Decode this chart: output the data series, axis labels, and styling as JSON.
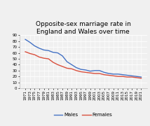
{
  "title": "Opposite-sex marriage rate in\nEngland and Wales over time",
  "years": [
    1971,
    1973,
    1975,
    1977,
    1979,
    1981,
    1983,
    1985,
    1987,
    1989,
    1991,
    1993,
    1995,
    1997,
    1999,
    2001,
    2003,
    2005,
    2007,
    2009,
    2011,
    2013,
    2015,
    2017,
    2019,
    2021
  ],
  "males": [
    83,
    78,
    72,
    68,
    65,
    64,
    61,
    60,
    55,
    45,
    40,
    35,
    32,
    31,
    29,
    30,
    30,
    27,
    25,
    24,
    24,
    23,
    22,
    21,
    20,
    19
  ],
  "females": [
    62,
    59,
    57,
    53,
    51,
    50,
    44,
    40,
    37,
    34,
    33,
    30,
    28,
    27,
    26,
    25,
    25,
    23,
    22,
    21,
    20,
    20,
    19,
    19,
    18,
    17
  ],
  "males_color": "#4472c4",
  "females_color": "#d94f3d",
  "ylim": [
    0,
    90
  ],
  "yticks": [
    0,
    10,
    20,
    30,
    40,
    50,
    60,
    70,
    80,
    90
  ],
  "background_color": "#f0f0f0",
  "plot_bg_color": "#f0f0f0",
  "title_fontsize": 6.5,
  "tick_fontsize": 4.0,
  "legend_fontsize": 5.0,
  "line_width": 1.0
}
